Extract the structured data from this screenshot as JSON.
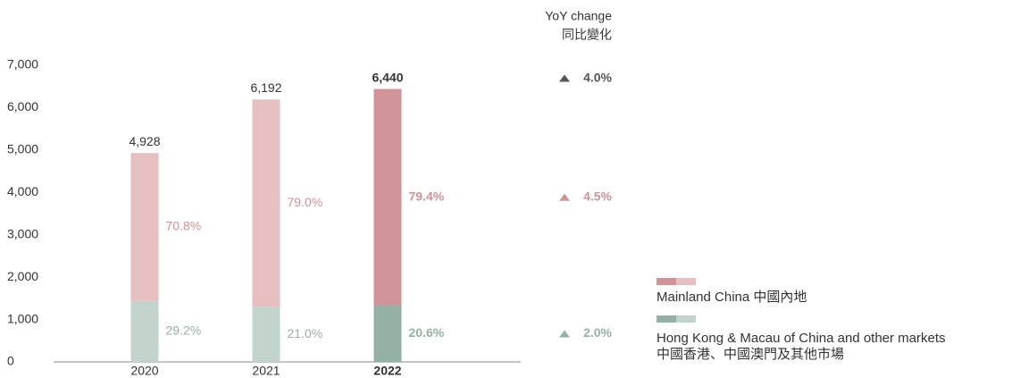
{
  "chart_data": {
    "type": "stacked_bar",
    "categories": [
      "2020",
      "2021",
      "2022"
    ],
    "highlight_index": 2,
    "totals": [
      4928,
      6192,
      6440
    ],
    "total_labels": [
      "4,928",
      "6,192",
      "6,440"
    ],
    "series": [
      {
        "name": "Hong Kong & Macau of China and other markets",
        "name_zh": "中國香港、中國澳門及其他市場",
        "color": "#c3d4cc",
        "highlight_color": "#95b1a4",
        "values": [
          1439,
          1300,
          1327
        ],
        "share_labels": [
          "29.2%",
          "21.0%",
          "20.6%"
        ]
      },
      {
        "name": "Mainland China 中國內地",
        "color": "#e6c0c1",
        "highlight_color": "#d09397",
        "values": [
          3489,
          4892,
          5113
        ],
        "share_labels": [
          "70.8%",
          "79.0%",
          "79.4%"
        ]
      }
    ],
    "ylim": [
      0,
      7000
    ],
    "yticks": [
      0,
      {
        "value": 1000,
        "label": "1,000"
      },
      {
        "value": 2000,
        "label": "2,000"
      },
      {
        "value": 3000,
        "label": "3,000"
      },
      {
        "value": 4000,
        "label": "4,000"
      },
      {
        "value": 5000,
        "label": "5,000"
      },
      {
        "value": 6000,
        "label": "6,000"
      },
      {
        "value": 7000,
        "label": "7,000"
      }
    ],
    "yoy": {
      "title": "YoY change",
      "title_zh": "同比變化",
      "rows": [
        {
          "label": "4.0%",
          "color": "#555555"
        },
        {
          "label": "4.5%",
          "color": "#d09397"
        },
        {
          "label": "2.0%",
          "color": "#95b1a4"
        }
      ]
    }
  }
}
